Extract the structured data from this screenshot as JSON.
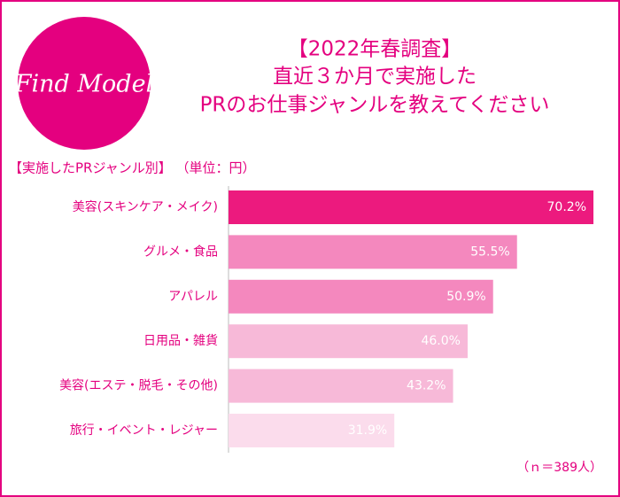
{
  "logo": "Find Model",
  "chart_data": {
    "type": "hbar",
    "title": [
      "【2022年春調査】",
      "直近３か月で実施した",
      "PRのお仕事ジャンルを教えてください"
    ],
    "subtitle": "【実施したPRジャンル別】 （単位：円）",
    "note": "（ｎ＝389人）",
    "categories": [
      "美容(スキンケア・メイク)",
      "グルメ・食品",
      "アパレル",
      "日用品・雑貨",
      "美容(エステ・脱毛・その他)",
      "旅行・イベント・レジャー"
    ],
    "values": [
      70.2,
      55.5,
      50.9,
      46.0,
      43.2,
      31.9
    ],
    "value_labels": [
      "70.2%",
      "55.5%",
      "50.9%",
      "46.0%",
      "43.2%",
      "31.9%"
    ],
    "colors": [
      "#ec1a7e",
      "#f488be",
      "#f488be",
      "#f7b9d8",
      "#f7b9d8",
      "#fbdcec"
    ]
  }
}
